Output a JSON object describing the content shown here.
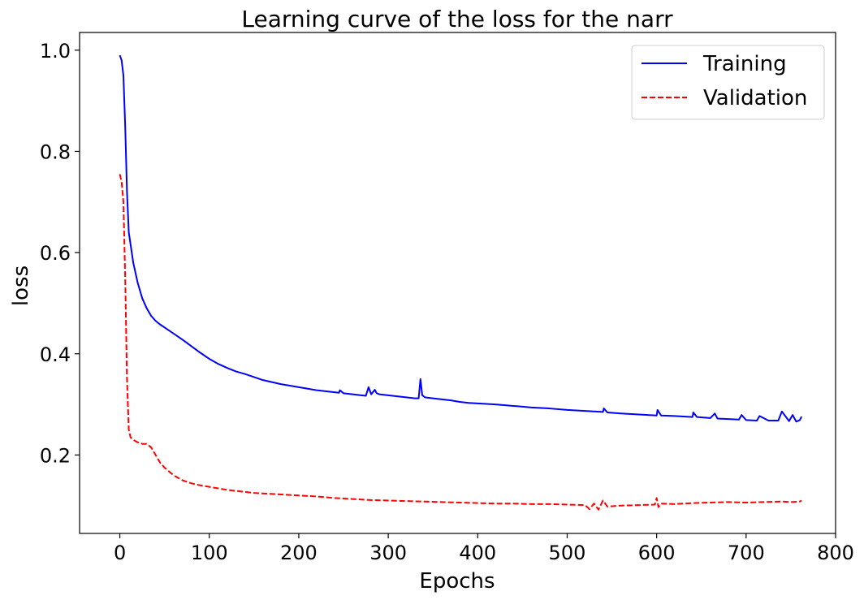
{
  "chart_data": {
    "type": "line",
    "title": "Learning curve of the loss for the narr",
    "xlabel": "Epochs",
    "ylabel": "loss",
    "xlim": [
      -45,
      800
    ],
    "ylim": [
      0.045,
      1.035
    ],
    "xticks": [
      0,
      100,
      200,
      300,
      400,
      500,
      600,
      700,
      800
    ],
    "yticks": [
      0.2,
      0.4,
      0.6,
      0.8,
      1.0
    ],
    "xtick_labels": [
      "0",
      "100",
      "200",
      "300",
      "400",
      "500",
      "600",
      "700",
      "800"
    ],
    "ytick_labels": [
      "0.2",
      "0.4",
      "0.6",
      "0.8",
      "1.0"
    ],
    "grid": false,
    "legend_position": "top-right",
    "series": [
      {
        "name": "Training",
        "color": "#0000ff",
        "style": "solid",
        "x": [
          0,
          2,
          4,
          6,
          8,
          10,
          15,
          20,
          25,
          30,
          35,
          40,
          45,
          50,
          60,
          70,
          80,
          90,
          100,
          110,
          120,
          130,
          140,
          150,
          160,
          170,
          180,
          190,
          200,
          210,
          220,
          230,
          240,
          245,
          246,
          250,
          260,
          270,
          275,
          278,
          281,
          285,
          287,
          290,
          300,
          310,
          320,
          330,
          334,
          336,
          338,
          341,
          350,
          360,
          370,
          380,
          390,
          400,
          420,
          440,
          460,
          480,
          500,
          520,
          540,
          541,
          545,
          560,
          580,
          600,
          601,
          605,
          620,
          640,
          641,
          645,
          660,
          665,
          668,
          680,
          692,
          695,
          700,
          712,
          715,
          725,
          736,
          740,
          748,
          752,
          756,
          760,
          762
        ],
        "y": [
          0.99,
          0.98,
          0.95,
          0.85,
          0.72,
          0.64,
          0.58,
          0.54,
          0.51,
          0.49,
          0.475,
          0.465,
          0.458,
          0.452,
          0.44,
          0.428,
          0.415,
          0.402,
          0.39,
          0.38,
          0.372,
          0.365,
          0.36,
          0.354,
          0.348,
          0.344,
          0.34,
          0.337,
          0.334,
          0.331,
          0.328,
          0.326,
          0.324,
          0.323,
          0.328,
          0.322,
          0.32,
          0.318,
          0.317,
          0.334,
          0.32,
          0.329,
          0.322,
          0.32,
          0.318,
          0.316,
          0.314,
          0.312,
          0.312,
          0.35,
          0.318,
          0.314,
          0.312,
          0.31,
          0.308,
          0.305,
          0.303,
          0.302,
          0.3,
          0.297,
          0.294,
          0.292,
          0.289,
          0.287,
          0.285,
          0.292,
          0.284,
          0.282,
          0.28,
          0.278,
          0.289,
          0.278,
          0.277,
          0.275,
          0.284,
          0.275,
          0.273,
          0.282,
          0.272,
          0.271,
          0.27,
          0.279,
          0.269,
          0.268,
          0.277,
          0.268,
          0.268,
          0.286,
          0.267,
          0.279,
          0.266,
          0.269,
          0.276
        ]
      },
      {
        "name": "Validation",
        "color": "#ff0000",
        "style": "dashed",
        "x": [
          0,
          2,
          4,
          6,
          8,
          10,
          12,
          15,
          20,
          25,
          30,
          35,
          40,
          45,
          50,
          60,
          70,
          80,
          90,
          100,
          110,
          120,
          130,
          140,
          150,
          160,
          170,
          180,
          190,
          200,
          220,
          240,
          260,
          280,
          300,
          320,
          340,
          360,
          380,
          400,
          420,
          440,
          460,
          480,
          500,
          520,
          525,
          530,
          535,
          540,
          545,
          560,
          580,
          598,
          600,
          602,
          605,
          620,
          640,
          660,
          680,
          700,
          720,
          740,
          750,
          760,
          762
        ],
        "y": [
          0.755,
          0.74,
          0.7,
          0.55,
          0.35,
          0.25,
          0.235,
          0.23,
          0.225,
          0.222,
          0.222,
          0.215,
          0.2,
          0.185,
          0.175,
          0.16,
          0.15,
          0.144,
          0.14,
          0.137,
          0.134,
          0.131,
          0.129,
          0.127,
          0.125,
          0.124,
          0.123,
          0.122,
          0.121,
          0.12,
          0.118,
          0.115,
          0.113,
          0.111,
          0.11,
          0.109,
          0.108,
          0.107,
          0.106,
          0.105,
          0.104,
          0.104,
          0.103,
          0.103,
          0.102,
          0.101,
          0.093,
          0.104,
          0.092,
          0.11,
          0.098,
          0.1,
          0.101,
          0.102,
          0.115,
          0.097,
          0.104,
          0.103,
          0.105,
          0.106,
          0.107,
          0.106,
          0.107,
          0.108,
          0.107,
          0.108,
          0.11
        ]
      }
    ]
  }
}
